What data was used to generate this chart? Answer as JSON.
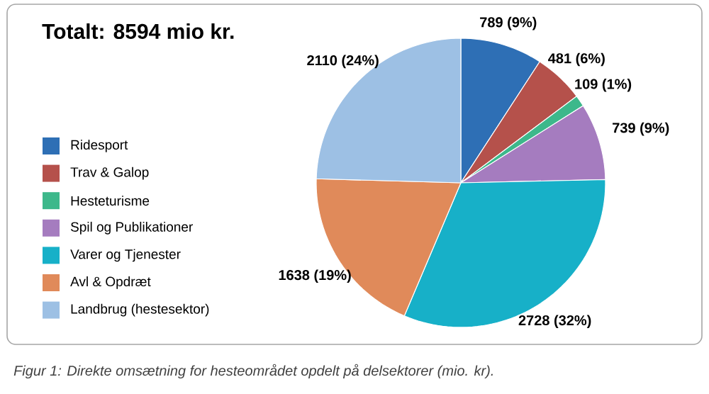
{
  "chart_data": {
    "type": "pie",
    "title": "Totalt: 8594 mio kr.",
    "categories": [
      "Ridesport",
      "Trav & Galop",
      "Hesteturisme",
      "Spil og Publikationer",
      "Varer og Tjenester",
      "Avl & Opdræt",
      "Landbrug (hestesektor)"
    ],
    "values": [
      789,
      481,
      109,
      739,
      2728,
      1638,
      2110
    ],
    "colors": [
      "#2e6fb5",
      "#b5514b",
      "#3db88b",
      "#a57cbf",
      "#17b0c8",
      "#e08a5a",
      "#9dc0e4"
    ],
    "value_labels": [
      "789 (9%)",
      "481 (6%)",
      "109 (1%)",
      "739 (9%)",
      "2728 (32%)",
      "1638 (19%)",
      "2110 (24%)"
    ],
    "legend": "left",
    "annotations": [
      "Figur 1: Direkte omsætning for hesteområdet opdelt på delsektorer (mio. kr)."
    ]
  }
}
